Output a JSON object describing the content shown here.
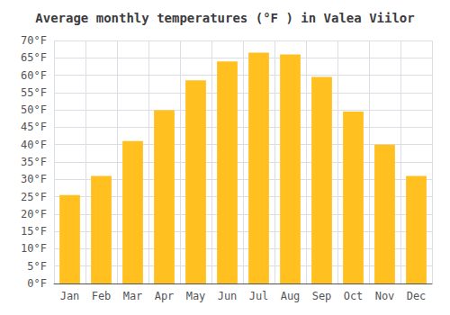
{
  "chart_data": {
    "type": "bar",
    "title": "Average monthly temperatures (°F ) in Valea Viilor",
    "categories": [
      "Jan",
      "Feb",
      "Mar",
      "Apr",
      "May",
      "Jun",
      "Jul",
      "Aug",
      "Sep",
      "Oct",
      "Nov",
      "Dec"
    ],
    "values": [
      25.5,
      31.0,
      41.0,
      49.9,
      58.5,
      64.0,
      66.5,
      66.0,
      59.5,
      49.5,
      40.0,
      31.0
    ],
    "color": "#FFC020",
    "ylim": [
      0,
      70
    ],
    "yticks": [
      {
        "value": 0,
        "label": "0°F"
      },
      {
        "value": 5,
        "label": "5°F"
      },
      {
        "value": 10,
        "label": "10°F"
      },
      {
        "value": 15,
        "label": "15°F"
      },
      {
        "value": 20,
        "label": "20°F"
      },
      {
        "value": 25,
        "label": "25°F"
      },
      {
        "value": 30,
        "label": "30°F"
      },
      {
        "value": 35,
        "label": "35°F"
      },
      {
        "value": 40,
        "label": "40°F"
      },
      {
        "value": 45,
        "label": "45°F"
      },
      {
        "value": 50,
        "label": "50°F"
      },
      {
        "value": 55,
        "label": "55°F"
      },
      {
        "value": 60,
        "label": "60°F"
      },
      {
        "value": 65,
        "label": "65°F"
      },
      {
        "value": 70,
        "label": "70°F"
      }
    ],
    "grid": true
  }
}
